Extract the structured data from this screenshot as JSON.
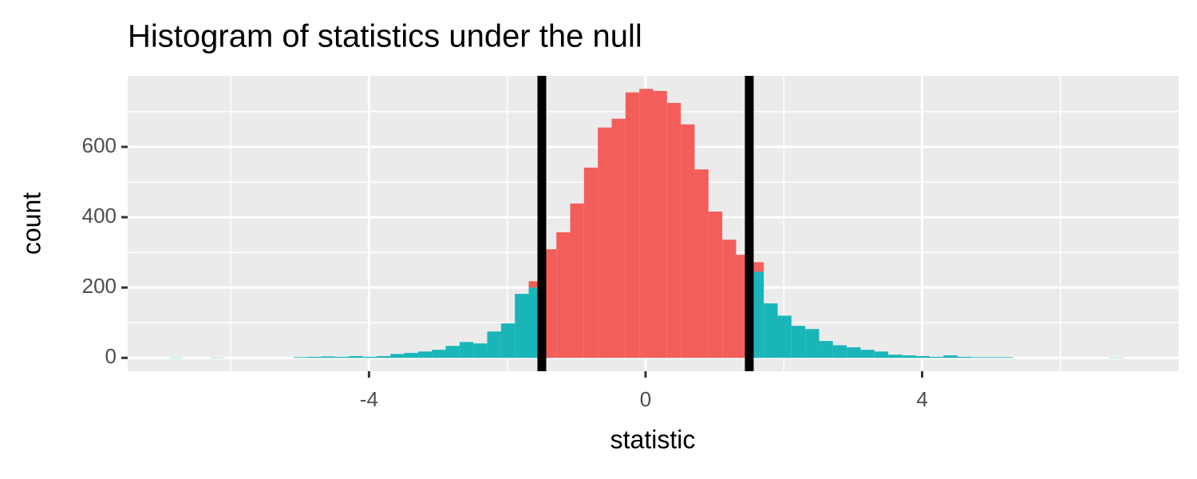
{
  "chart_data": {
    "type": "histogram",
    "title": "Histogram of statistics under the null",
    "x_label": "statistic",
    "y_label": "count",
    "bins": [
      -6.89,
      -6.69,
      -6.49,
      -6.29,
      -6.09,
      -5.89,
      -5.69,
      -5.49,
      -5.29,
      -5.09,
      -4.89,
      -4.69,
      -4.49,
      -4.29,
      -4.09,
      -3.89,
      -3.69,
      -3.49,
      -3.29,
      -3.09,
      -2.89,
      -2.69,
      -2.49,
      -2.29,
      -2.09,
      -1.89,
      -1.69,
      -1.49,
      -1.29,
      -1.09,
      -0.89,
      -0.69,
      -0.49,
      -0.29,
      -0.09,
      0.11,
      0.31,
      0.51,
      0.71,
      0.91,
      1.11,
      1.31,
      1.51,
      1.71,
      1.91,
      2.11,
      2.31,
      2.51,
      2.71,
      2.91,
      3.11,
      3.31,
      3.51,
      3.71,
      3.91,
      4.11,
      4.31,
      4.51,
      4.71,
      4.91,
      5.11,
      5.31,
      5.51,
      5.71,
      5.91,
      6.11,
      6.31,
      6.51,
      6.71,
      6.91,
      7.11
    ],
    "series": [
      {
        "color": "#1ab5b9",
        "values": [
          1,
          0,
          0,
          1,
          0,
          0,
          0,
          0,
          0,
          2,
          3,
          4,
          3,
          5,
          3,
          5,
          11,
          14,
          18,
          23,
          34,
          45,
          41,
          75,
          98,
          182,
          200,
          0,
          0,
          0,
          0,
          0,
          0,
          0,
          0,
          0,
          0,
          0,
          0,
          0,
          0,
          0,
          245,
          155,
          120,
          91,
          82,
          48,
          36,
          30,
          23,
          18,
          9,
          7,
          5,
          3,
          7,
          3,
          2,
          2,
          2,
          0,
          0,
          0,
          0,
          0,
          0,
          0,
          1,
          0
        ]
      },
      {
        "color": "#f35e5a",
        "values": [
          0,
          0,
          0,
          0,
          0,
          0,
          0,
          0,
          0,
          0,
          0,
          0,
          0,
          0,
          0,
          0,
          0,
          0,
          0,
          0,
          0,
          0,
          0,
          0,
          0,
          0,
          18,
          309,
          357,
          439,
          541,
          655,
          680,
          755,
          765,
          759,
          725,
          664,
          536,
          416,
          336,
          293,
          27,
          0,
          0,
          0,
          0,
          0,
          0,
          0,
          0,
          0,
          0,
          0,
          0,
          0,
          0,
          0,
          0,
          0,
          0,
          0,
          0,
          0,
          0,
          0,
          0,
          0,
          0,
          0
        ]
      }
    ],
    "vlines": [
      -1.5,
      1.5
    ],
    "vline_color": "#000000",
    "xlim": [
      -7.49,
      7.71
    ],
    "xticks": [
      -4,
      0,
      4
    ],
    "ylim": [
      -38,
      802
    ],
    "yticks": [
      0,
      200,
      400,
      600
    ],
    "grid": true
  }
}
